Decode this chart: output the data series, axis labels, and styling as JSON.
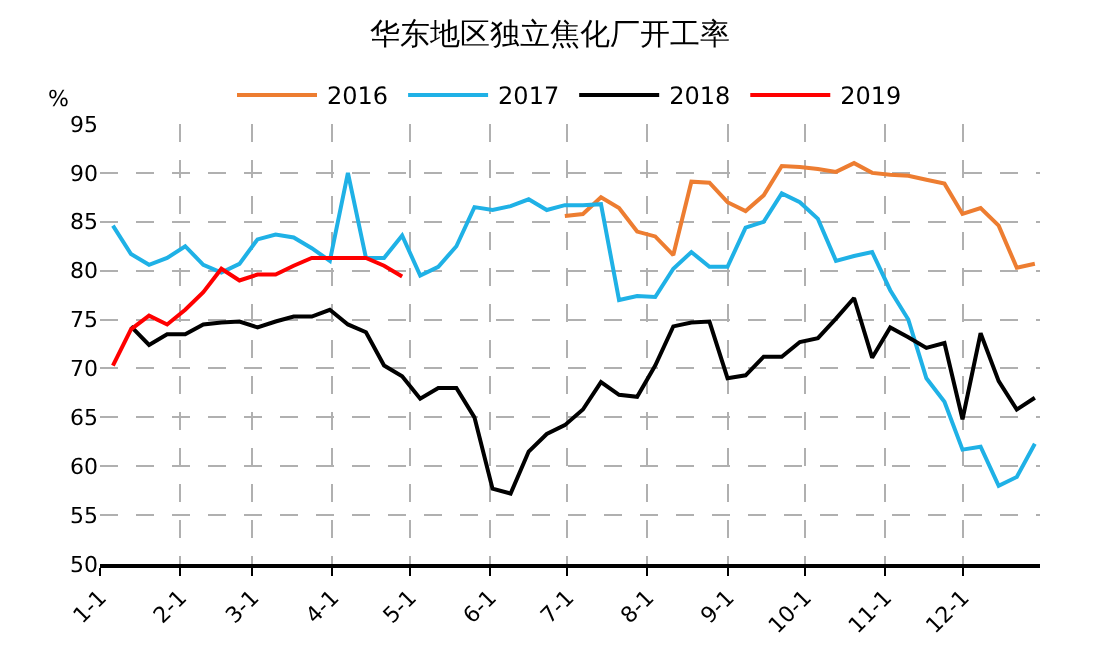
{
  "chart_data": {
    "type": "line",
    "title": "华东地区独立焦化厂开工率",
    "ylabel": "%",
    "x": [
      "--01-06",
      "--01-13",
      "--01-20",
      "--01-27",
      "--02-03",
      "--02-10",
      "--02-17",
      "--02-24",
      "--03-03",
      "--03-10",
      "--03-17",
      "--03-24",
      "--03-31",
      "--04-07",
      "--04-14",
      "--04-21",
      "--04-28",
      "--05-05",
      "--05-12",
      "--05-19",
      "--05-26",
      "--06-02",
      "--06-09",
      "--06-16",
      "--06-23",
      "--06-30",
      "--07-07",
      "--07-14",
      "--07-21",
      "--07-28",
      "--08-04",
      "--08-11",
      "--08-18",
      "--08-25",
      "--09-01",
      "--09-08",
      "--09-15",
      "--09-22",
      "--09-29",
      "--10-06",
      "--10-13",
      "--10-20",
      "--10-27",
      "--11-03",
      "--11-10",
      "--11-17",
      "--11-24",
      "--12-01",
      "--12-08",
      "--12-15",
      "--12-22",
      "--12-29"
    ],
    "series": [
      {
        "name": "2016",
        "color": "#ed7d31",
        "values": [
          null,
          null,
          null,
          null,
          null,
          null,
          null,
          null,
          null,
          null,
          null,
          null,
          null,
          null,
          null,
          null,
          null,
          null,
          null,
          null,
          null,
          null,
          null,
          null,
          null,
          85.6,
          85.8,
          87.5,
          86.4,
          84,
          83.5,
          81.6,
          89.1,
          89,
          87,
          86.1,
          87.7,
          90.7,
          90.6,
          90.4,
          90.1,
          91,
          90,
          89.8,
          89.7,
          89.3,
          88.9,
          85.8,
          86.4,
          84.6,
          80.3,
          80.7
        ]
      },
      {
        "name": "2017",
        "color": "#1fb1e6",
        "values": [
          84.6,
          81.7,
          80.6,
          81.3,
          82.5,
          80.6,
          79.8,
          80.7,
          83.2,
          83.7,
          83.4,
          82.3,
          81,
          90,
          81.3,
          81.3,
          83.6,
          79.5,
          80.4,
          82.5,
          86.5,
          86.2,
          86.6,
          87.3,
          86.2,
          86.7,
          86.7,
          86.8,
          77,
          77.4,
          77.3,
          80.2,
          81.9,
          80.4,
          80.4,
          84.4,
          85,
          87.9,
          87,
          85.3,
          81,
          81.5,
          81.9,
          78,
          75,
          69,
          66.6,
          61.7,
          62,
          58,
          58.9,
          62.3
        ]
      },
      {
        "name": "2018",
        "color": "#000000",
        "values": [
          null,
          74.3,
          72.4,
          73.5,
          73.5,
          74.5,
          74.7,
          74.8,
          74.2,
          74.8,
          75.3,
          75.3,
          76,
          74.5,
          73.7,
          70.3,
          69.2,
          66.9,
          68,
          68,
          65,
          57.7,
          57.2,
          61.5,
          63.3,
          64.2,
          65.8,
          68.6,
          67.3,
          67.1,
          70.3,
          74.3,
          74.7,
          74.8,
          69,
          69.3,
          71.2,
          71.2,
          72.7,
          73.1,
          75.1,
          77.2,
          71.1,
          74.2,
          73.2,
          72.1,
          72.6,
          64.8,
          73.6,
          68.7,
          65.8,
          67
        ]
      },
      {
        "name": "2019",
        "color": "#ff0000",
        "values": [
          70.3,
          74,
          75.4,
          74.5,
          76,
          77.8,
          80.2,
          79,
          79.6,
          79.6,
          80.5,
          81.3,
          81.3,
          81.3,
          81.3,
          80.5,
          79.4,
          null,
          null,
          null,
          null,
          null,
          null,
          null,
          null,
          null,
          null,
          null,
          null,
          null,
          null,
          null,
          null,
          null,
          null,
          null,
          null,
          null,
          null,
          null,
          null,
          null,
          null,
          null,
          null,
          null,
          null,
          null,
          null,
          null,
          null,
          null
        ]
      }
    ],
    "xlim": [
      "--01-01",
      "--12-31"
    ],
    "xticks": [
      {
        "value": "--01-01",
        "label": "1-1"
      },
      {
        "value": "--02-01",
        "label": "2-1"
      },
      {
        "value": "--03-01",
        "label": "3-1"
      },
      {
        "value": "--04-01",
        "label": "4-1"
      },
      {
        "value": "--05-01",
        "label": "5-1"
      },
      {
        "value": "--06-01",
        "label": "6-1"
      },
      {
        "value": "--07-01",
        "label": "7-1"
      },
      {
        "value": "--08-01",
        "label": "8-1"
      },
      {
        "value": "--09-01",
        "label": "9-1"
      },
      {
        "value": "--10-01",
        "label": "10-1"
      },
      {
        "value": "--11-01",
        "label": "11-1"
      },
      {
        "value": "--12-01",
        "label": "12-1"
      }
    ],
    "ylim": [
      50,
      95
    ],
    "yticks": [
      50,
      55,
      60,
      65,
      70,
      75,
      80,
      85,
      90,
      95
    ],
    "grid": true,
    "legend": "top",
    "marker": "none",
    "line_style": "solid"
  }
}
